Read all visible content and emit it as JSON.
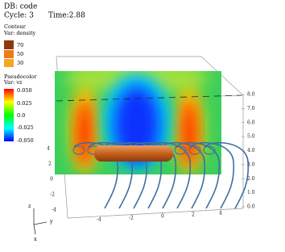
{
  "header": {
    "db": "DB: code",
    "cycle": "Cycle: 3",
    "time": "Time:2.88"
  },
  "legends": [
    {
      "title": "Contour",
      "var": "Var: density",
      "labels": [
        "70",
        "50",
        "30"
      ]
    },
    {
      "title": "Pseudocolor",
      "var": "Var: vz",
      "labels": [
        "0.050",
        "0.025",
        "0.0",
        "-0.025",
        "-0.050"
      ]
    }
  ],
  "axes": {
    "right_labels": [
      "8.0",
      "7.0",
      "6.0",
      "5.0",
      "4.0",
      "3.0",
      "2.0",
      "1.0",
      "0.0"
    ],
    "left_labels": [
      "4",
      "2",
      "0",
      "-2",
      "-4"
    ],
    "bottom_labels": [
      "-4",
      "-2",
      "0",
      "2",
      "4"
    ],
    "triad": [
      "z",
      "y",
      "x"
    ]
  }
}
